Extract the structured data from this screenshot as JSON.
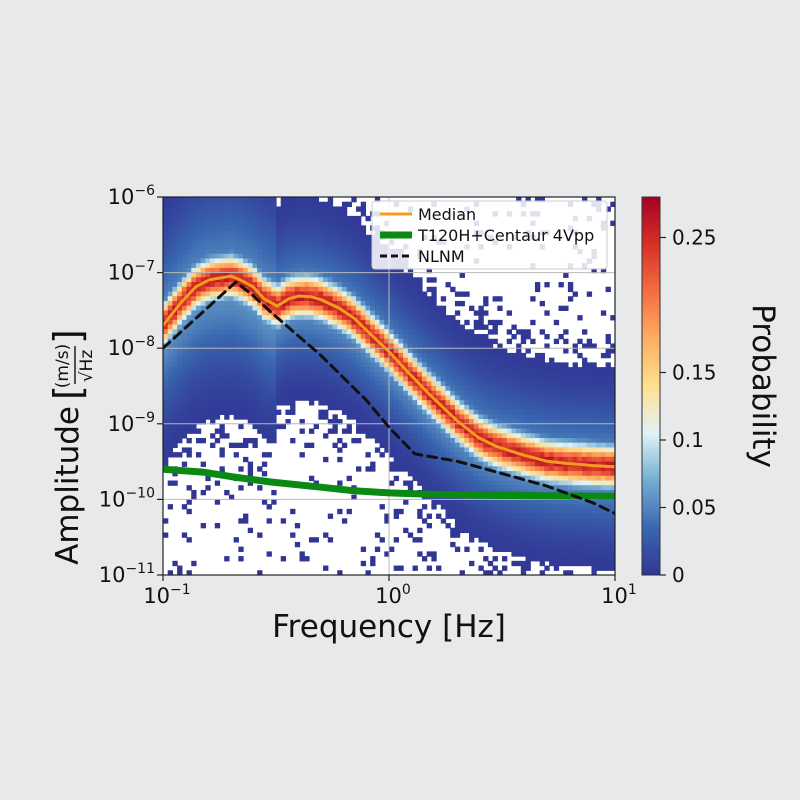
{
  "chart_data": {
    "type": "heatmap",
    "title": "",
    "xlabel": "Frequency [Hz]",
    "ylabel_prefix": "Amplitude",
    "ylabel_unit_numerator": "(m/s)",
    "ylabel_unit_denominator": "√Hz",
    "x_scale": "log",
    "y_scale": "log",
    "xlim": [
      0.1,
      10
    ],
    "ylim": [
      1e-11,
      1e-06
    ],
    "x_ticks": [
      {
        "value": 0.1,
        "base": "10",
        "exp": "−1"
      },
      {
        "value": 1,
        "base": "10",
        "exp": "0"
      },
      {
        "value": 10,
        "base": "10",
        "exp": "1"
      }
    ],
    "y_ticks": [
      {
        "value": 1e-06,
        "base": "10",
        "exp": "−6"
      },
      {
        "value": 1e-07,
        "base": "10",
        "exp": "−7"
      },
      {
        "value": 1e-08,
        "base": "10",
        "exp": "−8"
      },
      {
        "value": 1e-09,
        "base": "10",
        "exp": "−9"
      },
      {
        "value": 1e-10,
        "base": "10",
        "exp": "−10"
      },
      {
        "value": 1e-11,
        "base": "10",
        "exp": "−11"
      }
    ],
    "grid": true,
    "legend_position": "top-right",
    "series": [
      {
        "name": "Median",
        "color": "#f39c1e",
        "style": "solid",
        "x": [
          0.1,
          0.12,
          0.14,
          0.16,
          0.18,
          0.2,
          0.22,
          0.25,
          0.28,
          0.32,
          0.36,
          0.4,
          0.45,
          0.5,
          0.6,
          0.7,
          0.8,
          1.0,
          1.2,
          1.5,
          2.0,
          2.5,
          3.0,
          4.0,
          5.0,
          6.0,
          7.0,
          8.0,
          10.0
        ],
        "y": [
          2e-08,
          4e-08,
          6.5e-08,
          8e-08,
          8.5e-08,
          9e-08,
          8e-08,
          6.5e-08,
          4.5e-08,
          3.6e-08,
          4.5e-08,
          4.9e-08,
          4.8e-08,
          4.4e-08,
          3.4e-08,
          2.5e-08,
          1.7e-08,
          9e-09,
          5e-09,
          2.5e-09,
          1.1e-09,
          6.5e-10,
          5e-10,
          3.8e-10,
          3.2e-10,
          3e-10,
          2.9e-10,
          2.8e-10,
          2.7e-10
        ]
      },
      {
        "name": "T120H+Centaur 4Vpp",
        "color": "#0b8a13",
        "style": "solid-thick",
        "x": [
          0.1,
          0.15,
          0.2,
          0.3,
          0.5,
          0.7,
          1.0,
          1.5,
          2.0,
          3.0,
          5.0,
          7.0,
          10.0
        ],
        "y": [
          2.5e-10,
          2.3e-10,
          2e-10,
          1.7e-10,
          1.45e-10,
          1.3e-10,
          1.22e-10,
          1.17e-10,
          1.15e-10,
          1.13e-10,
          1.12e-10,
          1.11e-10,
          1.1e-10
        ]
      },
      {
        "name": "NLNM",
        "color": "#111111",
        "style": "dashed",
        "x": [
          0.1,
          0.15,
          0.21,
          0.25,
          0.3,
          0.5,
          0.8,
          1.0,
          1.3,
          2.0,
          3.0,
          5.0,
          8.0,
          10.0
        ],
        "y": [
          1e-08,
          3e-08,
          7.5e-08,
          5e-08,
          3e-08,
          8e-09,
          2e-09,
          9e-10,
          4e-10,
          3.2e-10,
          2.3e-10,
          1.5e-10,
          9e-11,
          6.5e-11
        ]
      }
    ],
    "heatmap": {
      "value_label": "Probability",
      "range": [
        0,
        0.28
      ],
      "colorbar_ticks": [
        {
          "value": 0,
          "label": "0"
        },
        {
          "value": 0.05,
          "label": "0.05"
        },
        {
          "value": 0.1,
          "label": "0.1"
        },
        {
          "value": 0.15,
          "label": "0.15"
        },
        {
          "value": 0.25,
          "label": "0.25"
        }
      ],
      "colorbar_colors": [
        "#313695",
        "#3a67b0",
        "#74add1",
        "#e0f3f8",
        "#fee090",
        "#fdae61",
        "#f46d43",
        "#d73027",
        "#a50026"
      ]
    }
  }
}
